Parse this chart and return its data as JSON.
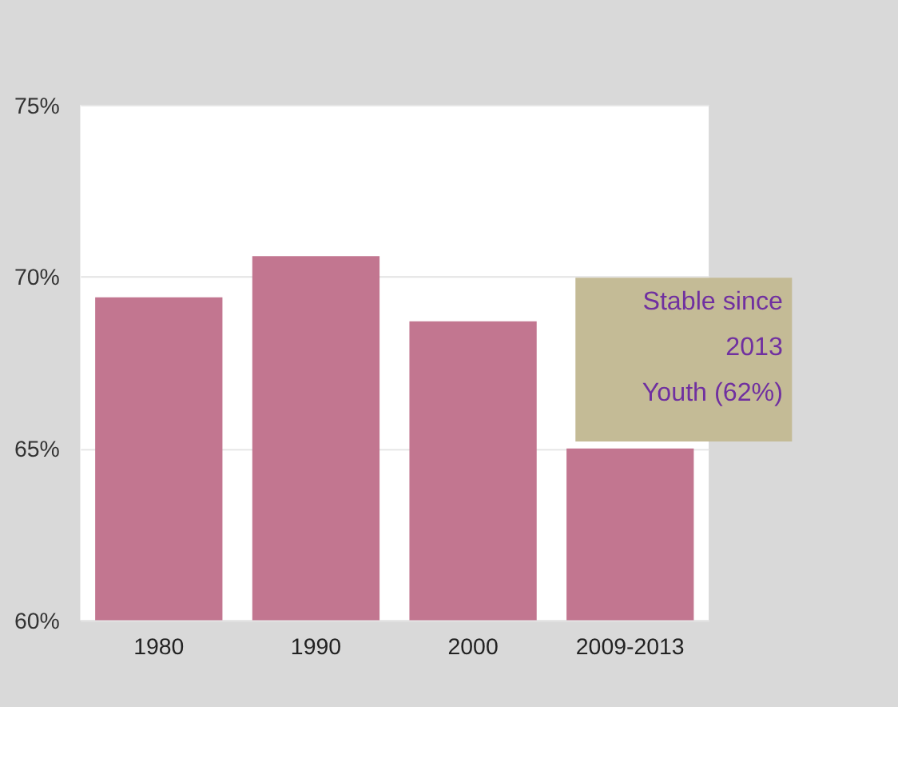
{
  "chart_data": {
    "type": "bar",
    "categories": [
      "1980",
      "1990",
      "2000",
      "2009-2013"
    ],
    "values": [
      69.4,
      70.6,
      68.7,
      65.0
    ],
    "color": "#c27690",
    "ylim": [
      60,
      75
    ],
    "yticks": [
      {
        "value": 60,
        "label": "60%"
      },
      {
        "value": 65,
        "label": "65%"
      },
      {
        "value": 70,
        "label": "70%"
      },
      {
        "value": 75,
        "label": "75%"
      }
    ],
    "grid": "y",
    "annotations": [
      "Stable since\n2013\nYouth (62%)"
    ]
  }
}
